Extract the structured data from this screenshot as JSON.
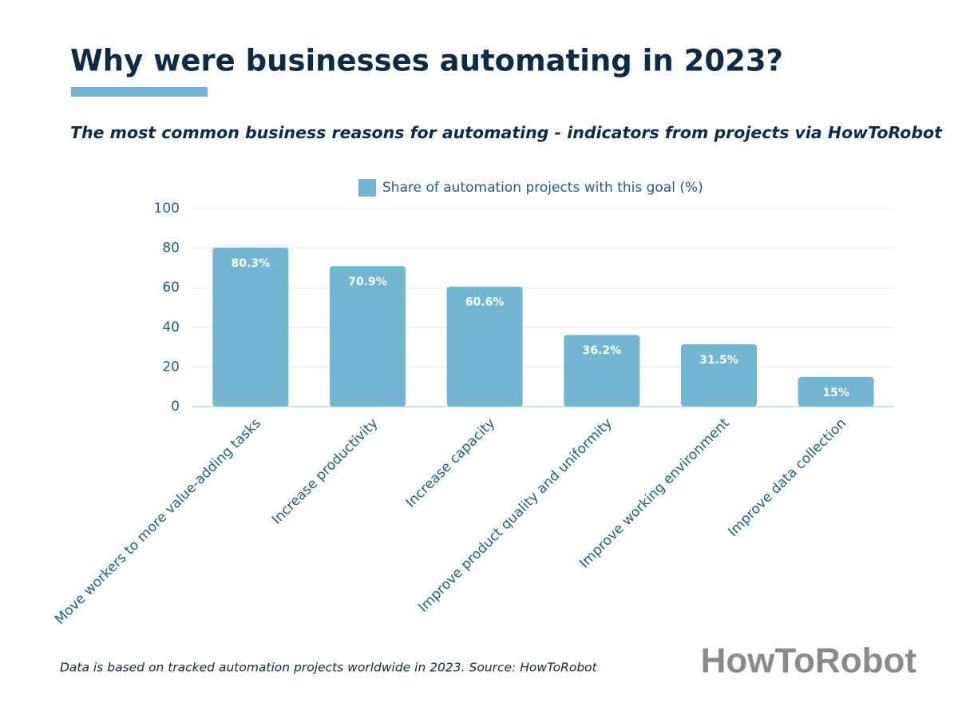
{
  "chart_data": {
    "type": "bar",
    "title": "Why were businesses automating in 2023?",
    "subtitle": "The most common business reasons for automating - indicators from projects via HowToRobot",
    "categories": [
      "Move workers to more value-adding tasks",
      "Increase productivity",
      "Increase capacity",
      "Improve product quality and uniformity",
      "Improve working environment",
      "Improve data collection"
    ],
    "series": [
      {
        "name": "Share of automation projects with this goal (%)",
        "color": "#73b6d3",
        "values": [
          80.3,
          70.9,
          60.6,
          36.2,
          31.5,
          15
        ],
        "value_labels": [
          "80.3%",
          "70.9%",
          "60.6%",
          "36.2%",
          "31.5%",
          "15%"
        ]
      }
    ],
    "ylim": [
      0,
      100
    ],
    "yticks": [
      0,
      20,
      40,
      60,
      80,
      100
    ],
    "grid": true,
    "legend": "top",
    "footnote": "Data is based on tracked automation projects worldwide in 2023. Source: HowToRobot",
    "logo": "HowToRobot"
  }
}
